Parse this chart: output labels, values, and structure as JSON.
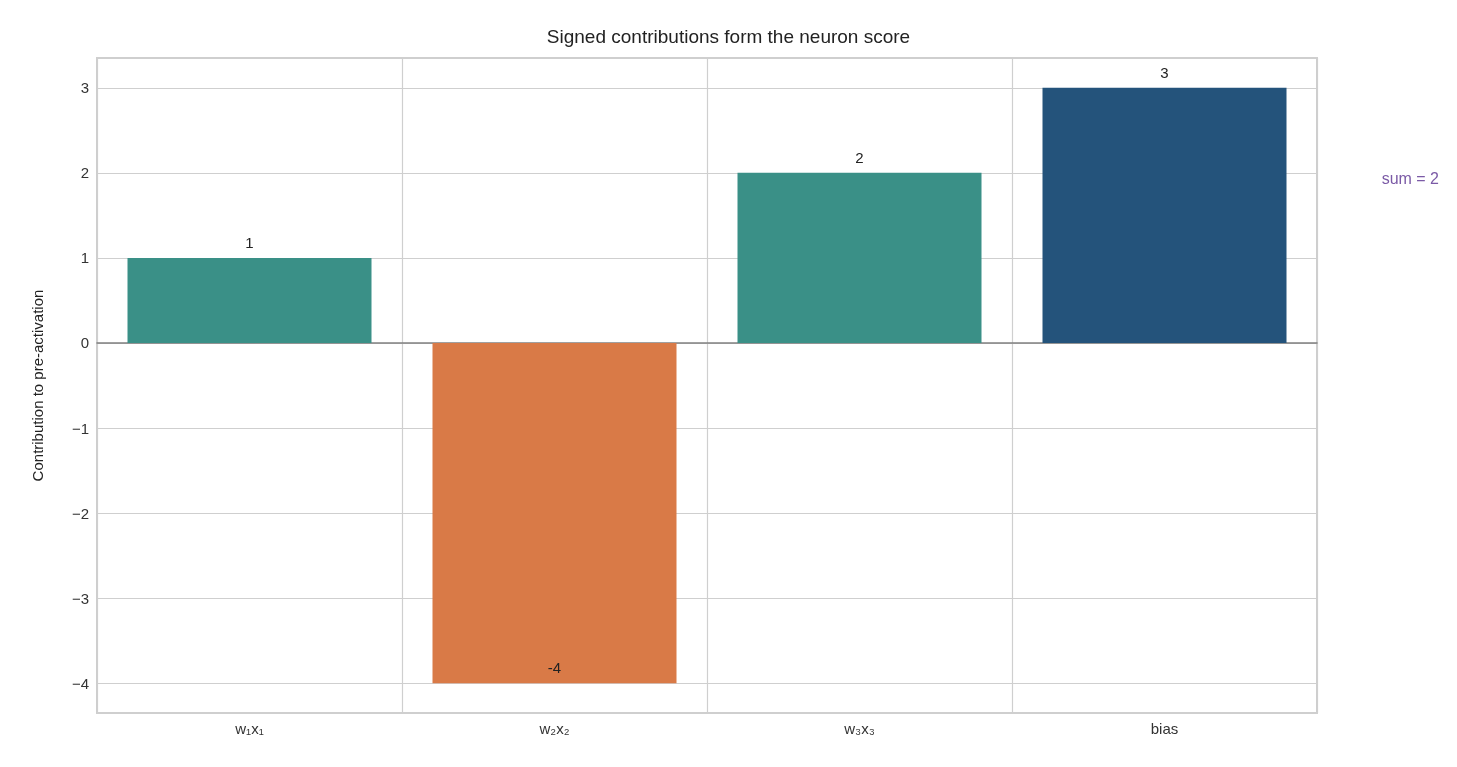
{
  "chart_data": {
    "type": "bar",
    "title": "Signed contributions form the neuron score",
    "ylabel": "Contribution to pre-activation",
    "categories": [
      "w₁x₁",
      "w₂x₂",
      "w₃x₃",
      "bias"
    ],
    "values": [
      1,
      -4,
      2,
      3
    ],
    "colors": [
      "#3a9087",
      "#d97a47",
      "#3a9087",
      "#24537b"
    ],
    "ylim": [
      -4.35,
      3.35
    ],
    "yticks": [
      {
        "value": -4,
        "label": "−4"
      },
      {
        "value": -3,
        "label": "−3"
      },
      {
        "value": -2,
        "label": "−2"
      },
      {
        "value": -1,
        "label": "−1"
      },
      0,
      1,
      2,
      3
    ],
    "data_labels": true,
    "grid": true,
    "annotations": [
      "sum = 2"
    ]
  }
}
